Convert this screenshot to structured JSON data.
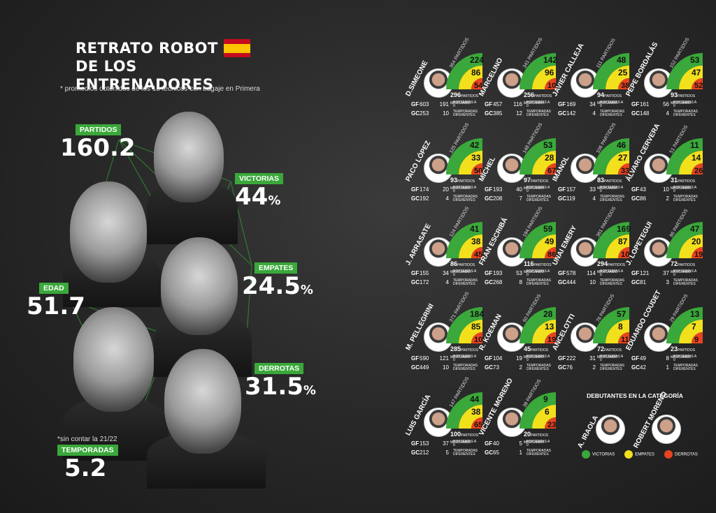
{
  "title": {
    "line1": "RETRATO ROBOT",
    "line2": "DE LOS ENTRENADORES",
    "subtitle": "* promedios obtenidos de los 18 técnicos con bagaje en Primera"
  },
  "stats": {
    "partidos": {
      "label": "PARTIDOS",
      "value": "160.2"
    },
    "victorias": {
      "label": "VICTORIAS",
      "value": "44",
      "unit": "%"
    },
    "empates": {
      "label": "EMPATES",
      "value": "24.5",
      "unit": "%"
    },
    "edad": {
      "label": "EDAD",
      "value": "51.7"
    },
    "derrotas": {
      "label": "DERROTAS",
      "value": "31.5",
      "unit": "%"
    },
    "temporadas": {
      "label": "TEMPORADAS",
      "value": "5.2",
      "note": "*sin contar la 21/22"
    }
  },
  "labels": {
    "porterias": "PORTERÍAS A 0",
    "temporadas": "TEMPORADAS DIFERENTES",
    "partidos_marcando": "PARTIDOS MARCANDO",
    "partidos": "PARTIDOS",
    "gf": "GF",
    "gc": "GC"
  },
  "colors": {
    "victorias": "#3aa83a",
    "empates": "#f2e01d",
    "derrotas": "#e8431f"
  },
  "coaches": [
    {
      "name": "D.SIMEONE",
      "partidos": "364",
      "v": "224",
      "e": "86",
      "d": "54",
      "marcando": "296",
      "gf": "603",
      "gf_p": "191",
      "gc": "253",
      "gc_p": "10"
    },
    {
      "name": "MARCELINO",
      "partidos": "341",
      "v": "142",
      "e": "96",
      "d": "103",
      "marcando": "256",
      "gf": "457",
      "gf_p": "116",
      "gc": "385",
      "gc_p": "12"
    },
    {
      "name": "JAVIER CALLEJA",
      "partidos": "111",
      "v": "48",
      "e": "25",
      "d": "38",
      "marcando": "94",
      "gf": "169",
      "gf_p": "34",
      "gc": "142",
      "gc_p": "4"
    },
    {
      "name": "PEPE BORDALÁS",
      "partidos": "152",
      "v": "53",
      "e": "47",
      "d": "52",
      "marcando": "93",
      "gf": "161",
      "gf_p": "56",
      "gc": "148",
      "gc_p": "4"
    },
    {
      "name": "PACO LÓPEZ",
      "partidos": "125",
      "v": "42",
      "e": "33",
      "d": "50",
      "marcando": "93",
      "gf": "174",
      "gf_p": "20",
      "gc": "192",
      "gc_p": "4"
    },
    {
      "name": "MÍCHEL",
      "partidos": "148",
      "v": "53",
      "e": "28",
      "d": "67",
      "marcando": "97",
      "gf": "193",
      "gf_p": "40",
      "gc": "208",
      "gc_p": "7"
    },
    {
      "name": "IMANOL",
      "partidos": "106",
      "v": "46",
      "e": "27",
      "d": "33",
      "marcando": "83",
      "gf": "157",
      "gf_p": "33",
      "gc": "119",
      "gc_p": "4"
    },
    {
      "name": "ÁLVARO CERVERA",
      "partidos": "51",
      "v": "11",
      "e": "14",
      "d": "26",
      "marcando": "31",
      "gf": "43",
      "gf_p": "10",
      "gc": "86",
      "gc_p": "2"
    },
    {
      "name": "J. ARRASATE",
      "partidos": "124",
      "v": "41",
      "e": "38",
      "d": "45",
      "marcando": "86",
      "gf": "155",
      "gf_p": "34",
      "gc": "172",
      "gc_p": "4"
    },
    {
      "name": "FRAN ESCRIBÁ",
      "partidos": "194",
      "v": "59",
      "e": "49",
      "d": "86",
      "marcando": "116",
      "gf": "193",
      "gf_p": "53",
      "gc": "268",
      "gc_p": "8"
    },
    {
      "name": "UNAI EMERY",
      "partidos": "361",
      "v": "169",
      "e": "87",
      "d": "105",
      "marcando": "294",
      "gf": "578",
      "gf_p": "114",
      "gc": "444",
      "gc_p": "10"
    },
    {
      "name": "J. LOPETEGUI",
      "partidos": "86",
      "v": "47",
      "e": "20",
      "d": "19",
      "marcando": "72",
      "gf": "121",
      "gf_p": "37",
      "gc": "81",
      "gc_p": "3"
    },
    {
      "name": "M. PELLEGRINI",
      "partidos": "371",
      "v": "184",
      "e": "85",
      "d": "102",
      "marcando": "285",
      "gf": "590",
      "gf_p": "121",
      "gc": "449",
      "gc_p": "10"
    },
    {
      "name": "R. KOEMAN",
      "partidos": "60",
      "v": "28",
      "e": "13",
      "d": "19",
      "marcando": "45",
      "gf": "104",
      "gf_p": "19",
      "gc": "73",
      "gc_p": "2"
    },
    {
      "name": "ANCELOTTI",
      "partidos": "76",
      "v": "57",
      "e": "8",
      "d": "11",
      "marcando": "72",
      "gf": "222",
      "gf_p": "31",
      "gc": "76",
      "gc_p": "2"
    },
    {
      "name": "EDUARDO COUDET",
      "partidos": "29",
      "v": "13",
      "e": "7",
      "d": "9",
      "marcando": "23",
      "gf": "49",
      "gf_p": "8",
      "gc": "42",
      "gc_p": "1"
    },
    {
      "name": "LUIS GARCÍA",
      "partidos": "147",
      "v": "44",
      "e": "38",
      "d": "65",
      "marcando": "100",
      "gf": "153",
      "gf_p": "37",
      "gc": "212",
      "gc_p": "5"
    },
    {
      "name": "VICENTE MORENO",
      "partidos": "38",
      "v": "9",
      "e": "6",
      "d": "23",
      "marcando": "20",
      "gf": "40",
      "gf_p": "5",
      "gc": "65",
      "gc_p": "1"
    }
  ],
  "debutantes": {
    "title": "DEBUTANTES EN LA CATEGORÍA",
    "names": [
      "A. IRAOLA",
      "ROBERT MORENO"
    ]
  },
  "legend": [
    "VICTORIAS",
    "EMPATES",
    "DERROTAS"
  ]
}
